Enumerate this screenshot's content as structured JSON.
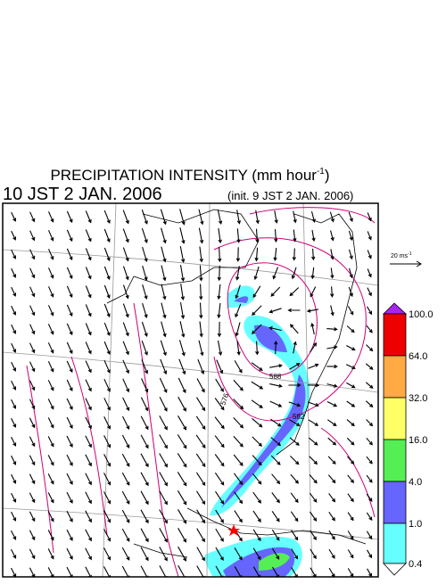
{
  "header": {
    "title": "PRECIPITATION INTENSITY (mm hour",
    "title_exponent": "-1",
    "title_close": ")",
    "valid_time": "10 JST 2 JAN. 2006",
    "init_time": "(init. 9 JST 2 JAN. 2006)"
  },
  "wind_scale": {
    "label": "20 ms",
    "exponent": "-1"
  },
  "colorbar": {
    "labels": [
      "100.0",
      "64.0",
      "32.0",
      "16.0",
      "4.0",
      "1.0",
      "0.4"
    ]
  },
  "contours": {
    "labels": [
      "588",
      "582",
      "576"
    ]
  }
}
